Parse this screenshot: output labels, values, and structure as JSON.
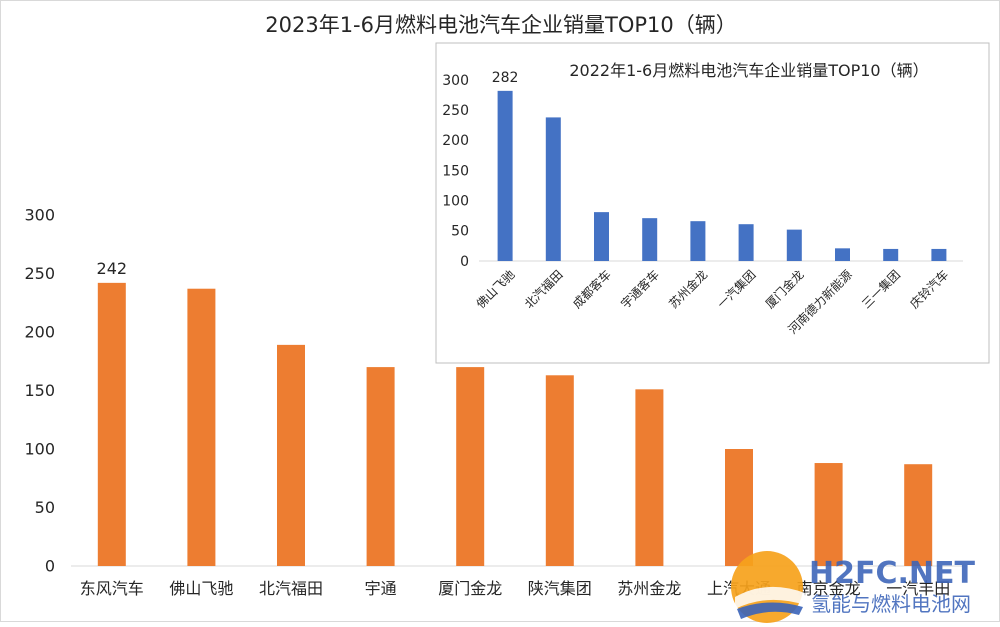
{
  "chart_data": [
    {
      "type": "bar",
      "title": "2023年1-6月燃料电池汽车企业销量TOP10（辆）",
      "categories": [
        "东风汽车",
        "佛山飞驰",
        "北汽福田",
        "宇通",
        "厦门金龙",
        "陕汽集团",
        "苏州金龙",
        "上汽大通",
        "南京金龙",
        "一汽丰田"
      ],
      "values": [
        242,
        237,
        189,
        170,
        170,
        163,
        151,
        100,
        88,
        87
      ],
      "data_labels": [
        {
          "index": 0,
          "text": "242"
        }
      ],
      "ylim": [
        0,
        300
      ],
      "yticks": [
        0,
        50,
        100,
        150,
        200,
        250,
        300
      ],
      "ytick_labels": [
        "0",
        "50",
        "100",
        "150",
        "200",
        "250",
        "300"
      ],
      "grid": false,
      "bar_color": "#ed7d31",
      "xlabel": "",
      "ylabel": ""
    },
    {
      "type": "bar",
      "title": "2022年1-6月燃料电池汽车企业销量TOP10（辆）",
      "categories": [
        "佛山飞驰",
        "北汽福田",
        "成都客车",
        "宇通客车",
        "苏州金龙",
        "一汽集团",
        "厦门金龙",
        "河南德力新能源",
        "三一集团",
        "庆铃汽车"
      ],
      "values": [
        282,
        238,
        81,
        71,
        66,
        61,
        52,
        21,
        20,
        20
      ],
      "data_labels": [
        {
          "index": 0,
          "text": "282"
        }
      ],
      "ylim": [
        0,
        300
      ],
      "yticks": [
        0,
        50,
        100,
        150,
        200,
        250,
        300
      ],
      "ytick_labels": [
        "0",
        "50",
        "100",
        "150",
        "200",
        "250",
        "300"
      ],
      "grid": false,
      "bar_color": "#4472c4",
      "xlabel": "",
      "ylabel": ""
    }
  ],
  "watermark": {
    "brand": "H2FC.NET",
    "tagline": "氢能与燃料电池网"
  }
}
